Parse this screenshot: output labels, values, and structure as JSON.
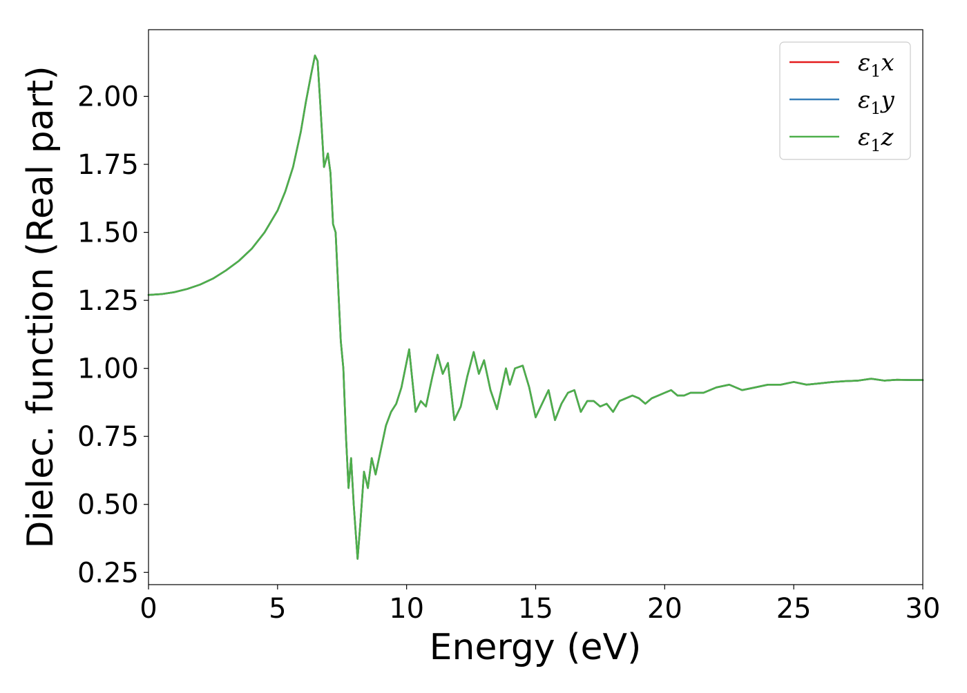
{
  "chart_data": {
    "type": "line",
    "title": "",
    "xlabel": "Energy (eV)",
    "ylabel": "Dielec. function (Real part)",
    "xlim": [
      0,
      30
    ],
    "ylim": [
      0.205,
      2.245
    ],
    "xticks": [
      0,
      5,
      10,
      15,
      20,
      25,
      30
    ],
    "xtick_labels": [
      "0",
      "5",
      "10",
      "15",
      "20",
      "25",
      "30"
    ],
    "yticks": [
      0.25,
      0.5,
      0.75,
      1.0,
      1.25,
      1.5,
      1.75,
      2.0
    ],
    "ytick_labels": [
      "0.25",
      "0.50",
      "0.75",
      "1.00",
      "1.25",
      "1.50",
      "1.75",
      "2.00"
    ],
    "grid": false,
    "legend_position": "top-right",
    "colors": {
      "eps1x": "#e41a1c",
      "eps1y": "#377eb8",
      "eps1z": "#4daf4a"
    },
    "x": [
      0,
      0.5,
      1,
      1.5,
      2,
      2.5,
      3,
      3.5,
      4,
      4.5,
      5,
      5.3,
      5.6,
      5.9,
      6.1,
      6.3,
      6.45,
      6.55,
      6.65,
      6.8,
      6.95,
      7.05,
      7.15,
      7.25,
      7.35,
      7.45,
      7.55,
      7.65,
      7.75,
      7.85,
      7.95,
      8.1,
      8.2,
      8.35,
      8.5,
      8.65,
      8.8,
      9.0,
      9.2,
      9.4,
      9.6,
      9.8,
      10.1,
      10.35,
      10.55,
      10.75,
      11.0,
      11.2,
      11.4,
      11.6,
      11.85,
      12.1,
      12.35,
      12.6,
      12.8,
      13.0,
      13.25,
      13.5,
      13.85,
      14.0,
      14.2,
      14.5,
      14.75,
      15.0,
      15.25,
      15.5,
      15.75,
      16.0,
      16.25,
      16.5,
      16.75,
      17.0,
      17.25,
      17.5,
      17.75,
      18.0,
      18.25,
      18.5,
      18.75,
      19.0,
      19.25,
      19.5,
      19.75,
      20.0,
      20.25,
      20.5,
      20.75,
      21.0,
      21.5,
      22.0,
      22.5,
      23.0,
      23.5,
      24.0,
      24.5,
      25.0,
      25.5,
      26.0,
      26.5,
      27.0,
      27.5,
      28.0,
      28.5,
      29.0,
      29.5,
      30.0
    ],
    "series": [
      {
        "name": "ε₁x",
        "color_key": "eps1x",
        "values": [
          1.27,
          1.273,
          1.28,
          1.292,
          1.308,
          1.33,
          1.36,
          1.395,
          1.44,
          1.5,
          1.58,
          1.65,
          1.74,
          1.87,
          1.98,
          2.08,
          2.15,
          2.13,
          1.98,
          1.74,
          1.79,
          1.72,
          1.53,
          1.5,
          1.3,
          1.1,
          1.0,
          0.75,
          0.56,
          0.67,
          0.5,
          0.3,
          0.42,
          0.62,
          0.56,
          0.67,
          0.61,
          0.7,
          0.79,
          0.84,
          0.87,
          0.93,
          1.07,
          0.84,
          0.88,
          0.86,
          0.97,
          1.05,
          0.98,
          1.02,
          0.81,
          0.86,
          0.97,
          1.06,
          0.98,
          1.03,
          0.92,
          0.85,
          1.0,
          0.94,
          1.0,
          1.01,
          0.93,
          0.82,
          0.87,
          0.92,
          0.81,
          0.87,
          0.91,
          0.92,
          0.84,
          0.88,
          0.88,
          0.86,
          0.87,
          0.84,
          0.88,
          0.89,
          0.9,
          0.89,
          0.87,
          0.89,
          0.9,
          0.91,
          0.92,
          0.9,
          0.9,
          0.91,
          0.91,
          0.93,
          0.94,
          0.92,
          0.93,
          0.94,
          0.94,
          0.95,
          0.94,
          0.945,
          0.95,
          0.953,
          0.955,
          0.962,
          0.955,
          0.958,
          0.957,
          0.957
        ]
      },
      {
        "name": "ε₁y",
        "color_key": "eps1y",
        "values": [
          1.27,
          1.273,
          1.28,
          1.292,
          1.308,
          1.33,
          1.36,
          1.395,
          1.44,
          1.5,
          1.58,
          1.65,
          1.74,
          1.87,
          1.98,
          2.08,
          2.15,
          2.13,
          1.98,
          1.74,
          1.79,
          1.72,
          1.53,
          1.5,
          1.3,
          1.1,
          1.0,
          0.75,
          0.56,
          0.67,
          0.5,
          0.3,
          0.42,
          0.62,
          0.56,
          0.67,
          0.61,
          0.7,
          0.79,
          0.84,
          0.87,
          0.93,
          1.07,
          0.84,
          0.88,
          0.86,
          0.97,
          1.05,
          0.98,
          1.02,
          0.81,
          0.86,
          0.97,
          1.06,
          0.98,
          1.03,
          0.92,
          0.85,
          1.0,
          0.94,
          1.0,
          1.01,
          0.93,
          0.82,
          0.87,
          0.92,
          0.81,
          0.87,
          0.91,
          0.92,
          0.84,
          0.88,
          0.88,
          0.86,
          0.87,
          0.84,
          0.88,
          0.89,
          0.9,
          0.89,
          0.87,
          0.89,
          0.9,
          0.91,
          0.92,
          0.9,
          0.9,
          0.91,
          0.91,
          0.93,
          0.94,
          0.92,
          0.93,
          0.94,
          0.94,
          0.95,
          0.94,
          0.945,
          0.95,
          0.953,
          0.955,
          0.962,
          0.955,
          0.958,
          0.957,
          0.957
        ]
      },
      {
        "name": "ε₁z",
        "color_key": "eps1z",
        "values": [
          1.27,
          1.273,
          1.28,
          1.292,
          1.308,
          1.33,
          1.36,
          1.395,
          1.44,
          1.5,
          1.58,
          1.65,
          1.74,
          1.87,
          1.98,
          2.08,
          2.15,
          2.13,
          1.98,
          1.74,
          1.79,
          1.72,
          1.53,
          1.5,
          1.3,
          1.1,
          1.0,
          0.75,
          0.56,
          0.67,
          0.5,
          0.3,
          0.42,
          0.62,
          0.56,
          0.67,
          0.61,
          0.7,
          0.79,
          0.84,
          0.87,
          0.93,
          1.07,
          0.84,
          0.88,
          0.86,
          0.97,
          1.05,
          0.98,
          1.02,
          0.81,
          0.86,
          0.97,
          1.06,
          0.98,
          1.03,
          0.92,
          0.85,
          1.0,
          0.94,
          1.0,
          1.01,
          0.93,
          0.82,
          0.87,
          0.92,
          0.81,
          0.87,
          0.91,
          0.92,
          0.84,
          0.88,
          0.88,
          0.86,
          0.87,
          0.84,
          0.88,
          0.89,
          0.9,
          0.89,
          0.87,
          0.89,
          0.9,
          0.91,
          0.92,
          0.9,
          0.9,
          0.91,
          0.91,
          0.93,
          0.94,
          0.92,
          0.93,
          0.94,
          0.94,
          0.95,
          0.94,
          0.945,
          0.95,
          0.953,
          0.955,
          0.962,
          0.955,
          0.958,
          0.957,
          0.957
        ]
      }
    ],
    "legend": [
      {
        "base": "ε",
        "sub": "1",
        "var": "x",
        "color_key": "eps1x"
      },
      {
        "base": "ε",
        "sub": "1",
        "var": "y",
        "color_key": "eps1y"
      },
      {
        "base": "ε",
        "sub": "1",
        "var": "z",
        "color_key": "eps1z"
      }
    ]
  }
}
